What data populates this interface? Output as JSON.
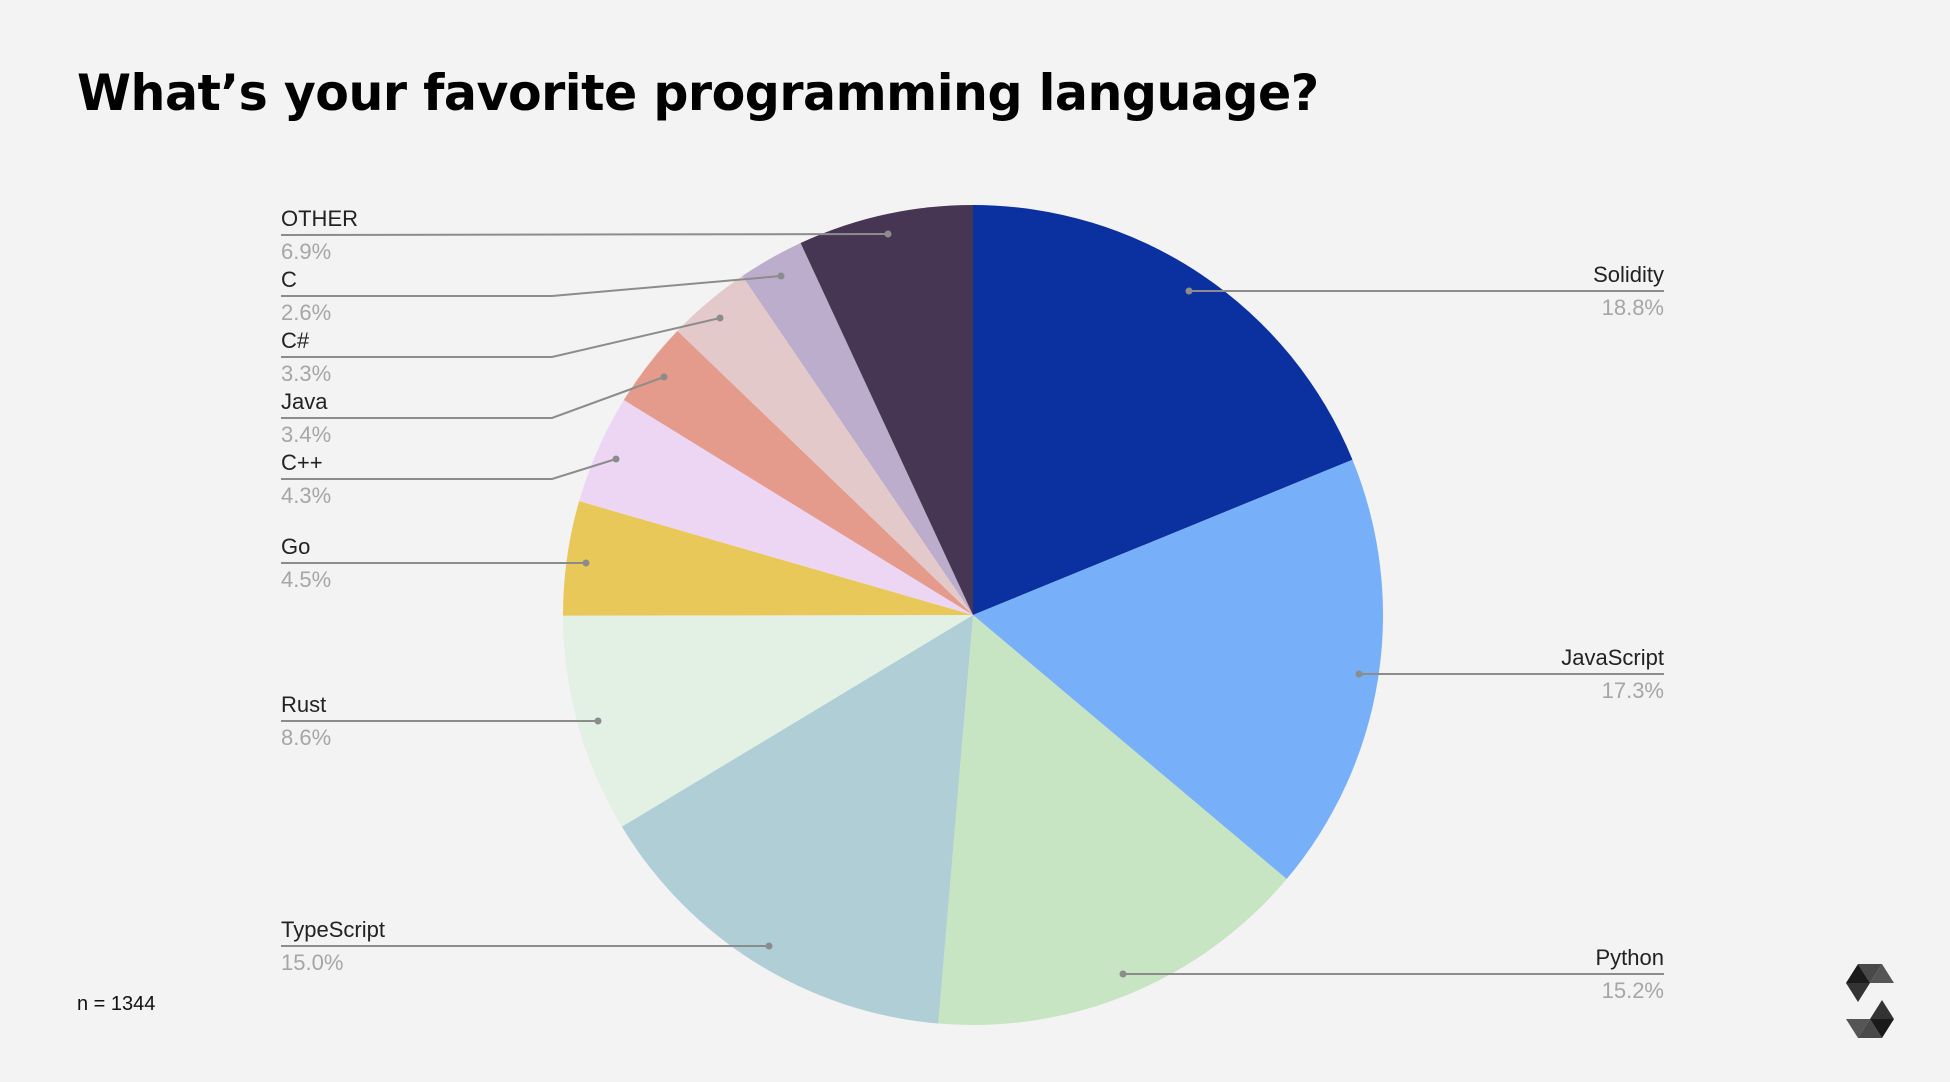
{
  "title": "What’s your favorite programming language?",
  "sample_size_label": "n = 1344",
  "logo": {
    "icon": "solidity-logo-icon"
  },
  "colors": {
    "background": "#f3f3f3",
    "leader_line": "#8c8c8c",
    "label_text": "#222222",
    "percent_text": "#a6a6a6"
  },
  "chart_data": {
    "type": "pie",
    "title": "What’s your favorite programming language?",
    "note": "n = 1344",
    "start_angle_deg": 0,
    "direction": "clockwise",
    "legend_position": "leader-line labels",
    "slices": [
      {
        "label": "Solidity",
        "value": 18.8,
        "display": "18.8%",
        "color": "#0b31a0"
      },
      {
        "label": "JavaScript",
        "value": 17.3,
        "display": "17.3%",
        "color": "#78aff9"
      },
      {
        "label": "Python",
        "value": 15.2,
        "display": "15.2%",
        "color": "#c7e4c3"
      },
      {
        "label": "TypeScript",
        "value": 15.0,
        "display": "15.0%",
        "color": "#afced5"
      },
      {
        "label": "Rust",
        "value": 8.6,
        "display": "8.6%",
        "color": "#e3f0e4"
      },
      {
        "label": "Go",
        "value": 4.5,
        "display": "4.5%",
        "color": "#e9c85a"
      },
      {
        "label": "C++",
        "value": 4.3,
        "display": "4.3%",
        "color": "#edd6f4"
      },
      {
        "label": "Java",
        "value": 3.4,
        "display": "3.4%",
        "color": "#e49b8c"
      },
      {
        "label": "C#",
        "value": 3.3,
        "display": "3.3%",
        "color": "#e4c9cb"
      },
      {
        "label": "C",
        "value": 2.6,
        "display": "2.6%",
        "color": "#bbadcb"
      },
      {
        "label": "OTHER",
        "value": 6.9,
        "display": "6.9%",
        "color": "#463653"
      }
    ]
  },
  "labels": {
    "solidity": {
      "name": "Solidity",
      "pct": "18.8%"
    },
    "javascript": {
      "name": "JavaScript",
      "pct": "17.3%"
    },
    "python": {
      "name": "Python",
      "pct": "15.2%"
    },
    "typescript": {
      "name": "TypeScript",
      "pct": "15.0%"
    },
    "rust": {
      "name": "Rust",
      "pct": "8.6%"
    },
    "go": {
      "name": "Go",
      "pct": "4.5%"
    },
    "cpp": {
      "name": "C++",
      "pct": "4.3%"
    },
    "java": {
      "name": "Java",
      "pct": "3.4%"
    },
    "csharp": {
      "name": "C#",
      "pct": "3.3%"
    },
    "c": {
      "name": "C",
      "pct": "2.6%"
    },
    "other": {
      "name": "OTHER",
      "pct": "6.9%"
    }
  }
}
